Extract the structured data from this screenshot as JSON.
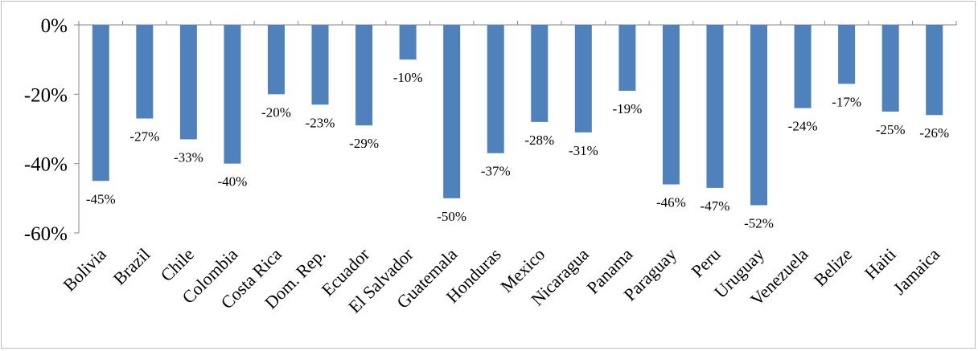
{
  "chart_data": {
    "type": "bar",
    "categories": [
      "Bolivia",
      "Brazil",
      "Chile",
      "Colombia",
      "Costa Rica",
      "Dom. Rep.",
      "Ecuador",
      "El Salvador",
      "Guatemala",
      "Honduras",
      "Mexico",
      "Nicaragua",
      "Panama",
      "Paraguay",
      "Peru",
      "Uruguay",
      "Venezuela",
      "Belize",
      "Haiti",
      "Jamaica"
    ],
    "values": [
      -45,
      -27,
      -33,
      -40,
      -20,
      -23,
      -29,
      -10,
      -50,
      -37,
      -28,
      -31,
      -19,
      -46,
      -47,
      -52,
      -24,
      -17,
      -25,
      -26
    ],
    "data_labels": [
      "-45%",
      "-27%",
      "-33%",
      "-40%",
      "-20%",
      "-23%",
      "-29%",
      "-10%",
      "-50%",
      "-37%",
      "-28%",
      "-31%",
      "-19%",
      "-46%",
      "-47%",
      "-52%",
      "-24%",
      "-17%",
      "-25%",
      "-26%"
    ],
    "y_ticks": [
      0,
      -20,
      -40,
      -60
    ],
    "y_tick_labels": [
      "0%",
      "-20%",
      "-40%",
      "-60%"
    ],
    "ylim": [
      -60,
      0
    ],
    "grid": false,
    "legend": "none",
    "bar_color": "#4f81bd",
    "title": "",
    "xlabel": "",
    "ylabel": ""
  }
}
